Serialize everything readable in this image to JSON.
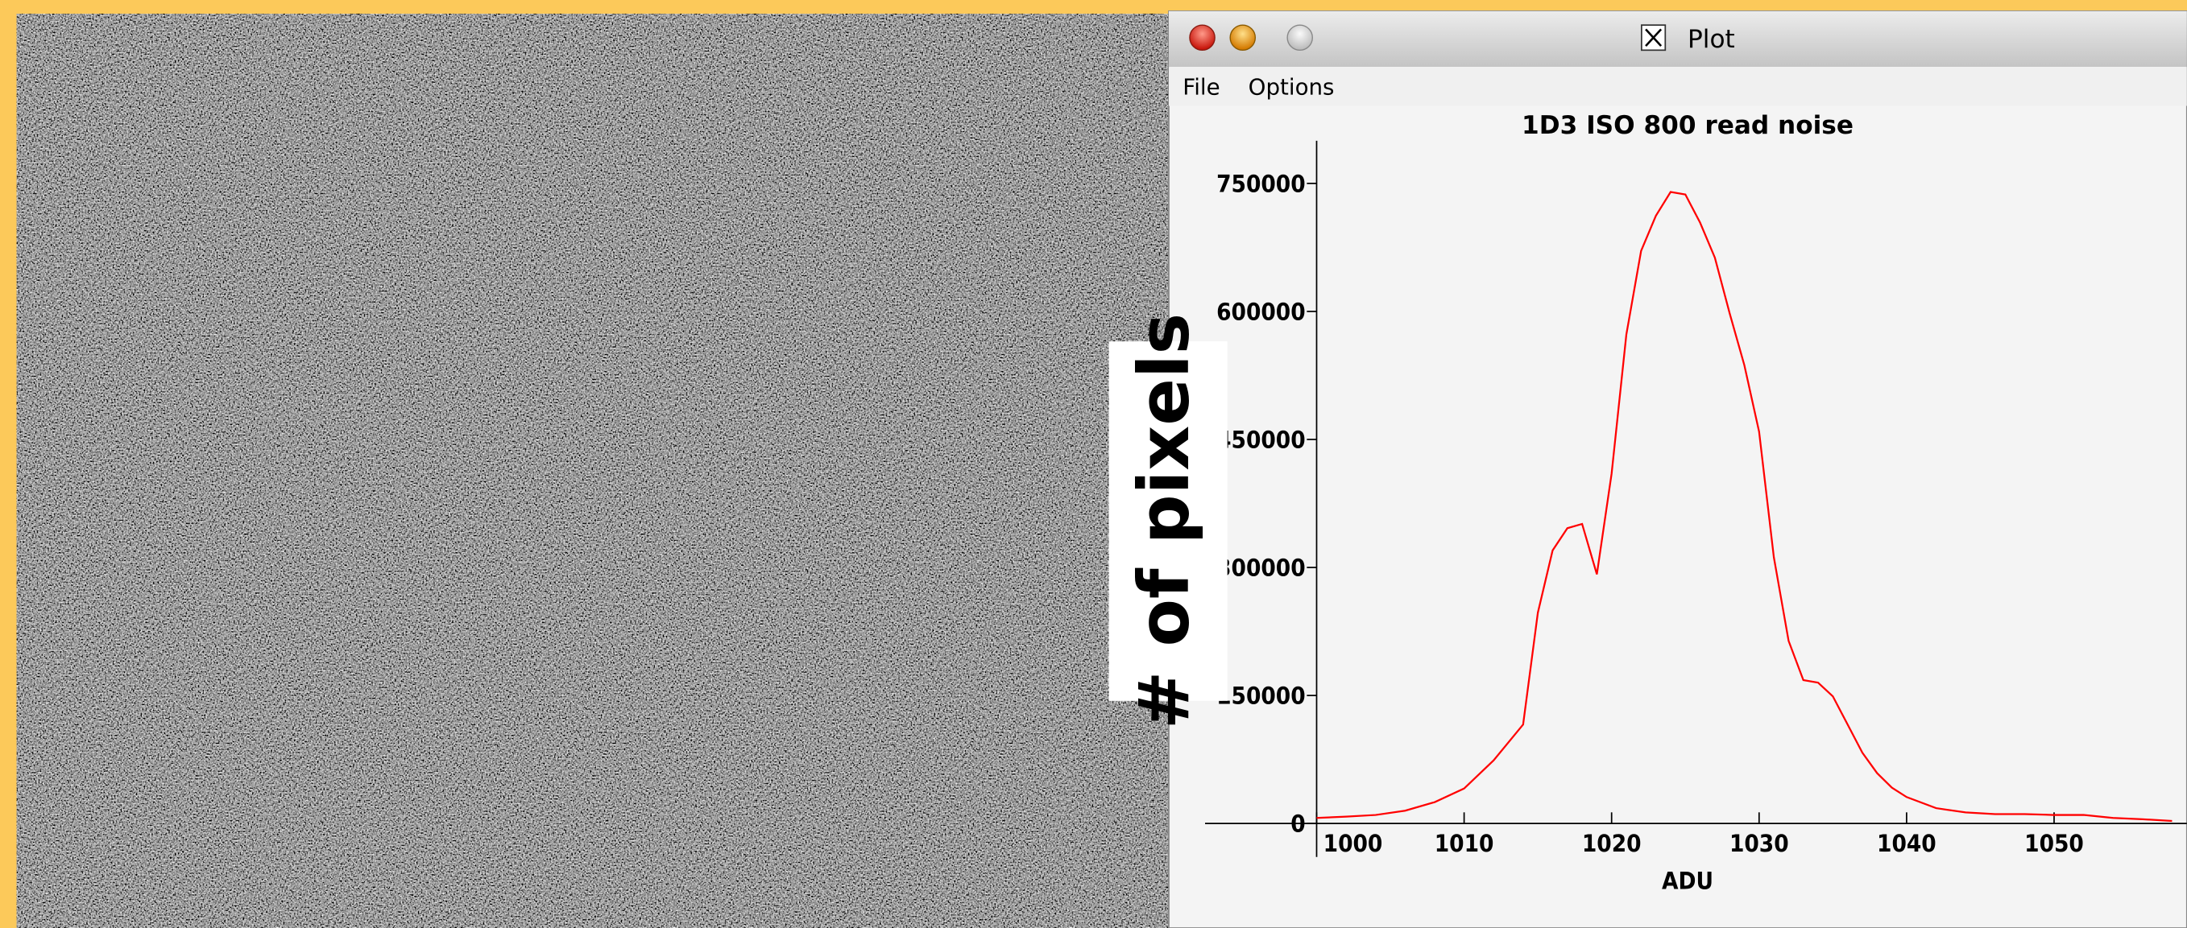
{
  "window": {
    "title": "Plot",
    "menu": [
      "File",
      "Options"
    ]
  },
  "overlay_label": "# of pixels",
  "chart_data": {
    "type": "line",
    "title": "1D3 ISO 800 read noise",
    "x_label": "ADU",
    "x": [
      1000,
      1002,
      1004,
      1006,
      1008,
      1010,
      1012,
      1014,
      1015,
      1016,
      1017,
      1018,
      1019,
      1020,
      1021,
      1022,
      1023,
      1024,
      1025,
      1026,
      1027,
      1028,
      1029,
      1030,
      1031,
      1032,
      1033,
      1034,
      1035,
      1036,
      1037,
      1038,
      1039,
      1040,
      1042,
      1044,
      1046,
      1048,
      1050,
      1052,
      1054,
      1056,
      1058
    ],
    "series": [
      {
        "color": "#ff0000",
        "values": [
          6500,
          8000,
          10000,
          15000,
          25000,
          41000,
          74000,
          116000,
          247000,
          320000,
          346000,
          351000,
          292000,
          410000,
          573000,
          671000,
          712000,
          740000,
          737000,
          704000,
          663000,
          598000,
          537000,
          459000,
          312000,
          214000,
          168000,
          165000,
          149000,
          116000,
          83000,
          59000,
          42000,
          31000,
          18000,
          13000,
          11000,
          11000,
          10000,
          10000,
          6500,
          5000,
          3000
        ]
      }
    ],
    "xlim": [
      1000,
      1059
    ],
    "ylim": [
      0,
      800000
    ],
    "xticks": [
      1000,
      1010,
      1020,
      1030,
      1040,
      1050
    ],
    "yticks": [
      0,
      150000,
      300000,
      450000,
      600000,
      750000
    ]
  }
}
